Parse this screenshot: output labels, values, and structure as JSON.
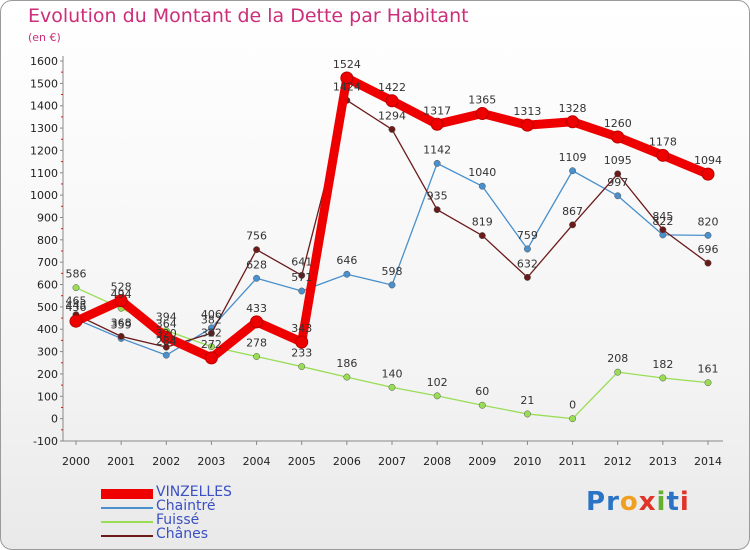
{
  "title": "Evolution du Montant de la Dette par Habitant",
  "subtitle": "(en €)",
  "brand": {
    "text": "Proxiti",
    "letters": [
      "P",
      "r",
      "o",
      "x",
      "i",
      "t",
      "i"
    ],
    "colors": [
      "#2b73c4",
      "#2b73c4",
      "#f0a020",
      "#e0342a",
      "#66b030",
      "#2b73c4",
      "#e0342a"
    ]
  },
  "chart_data": {
    "type": "line",
    "title": "Evolution du Montant de la Dette par Habitant",
    "ylabel": "(en €)",
    "x": [
      2000,
      2001,
      2002,
      2003,
      2004,
      2005,
      2006,
      2007,
      2008,
      2009,
      2010,
      2011,
      2012,
      2013,
      2014
    ],
    "ylim": [
      -100,
      1600
    ],
    "yticks": [
      -100,
      0,
      100,
      200,
      300,
      400,
      500,
      600,
      700,
      800,
      900,
      1000,
      1100,
      1200,
      1300,
      1400,
      1500,
      1600
    ],
    "grid": false,
    "legend_position": "bottom-left",
    "series": [
      {
        "name": "VINZELLES",
        "color": "#ee0000",
        "values": [
          436,
          528,
          364,
          272,
          433,
          343,
          1524,
          1422,
          1317,
          1365,
          1313,
          1328,
          1260,
          1178,
          1094
        ]
      },
      {
        "name": "Chaintré",
        "color": "#4a90cc",
        "values": [
          445,
          359,
          284,
          406,
          628,
          571,
          646,
          598,
          1142,
          1040,
          759,
          1109,
          997,
          822,
          820
        ]
      },
      {
        "name": "Fuissé",
        "color": "#99dd55",
        "values": [
          586,
          494,
          394,
          322,
          278,
          233,
          186,
          140,
          102,
          60,
          21,
          0,
          208,
          182,
          161
        ]
      },
      {
        "name": "Chânes",
        "color": "#6b1a1a",
        "values": [
          465,
          368,
          320,
          382,
          756,
          641,
          1424,
          1294,
          935,
          819,
          632,
          867,
          1095,
          845,
          696
        ]
      }
    ]
  }
}
